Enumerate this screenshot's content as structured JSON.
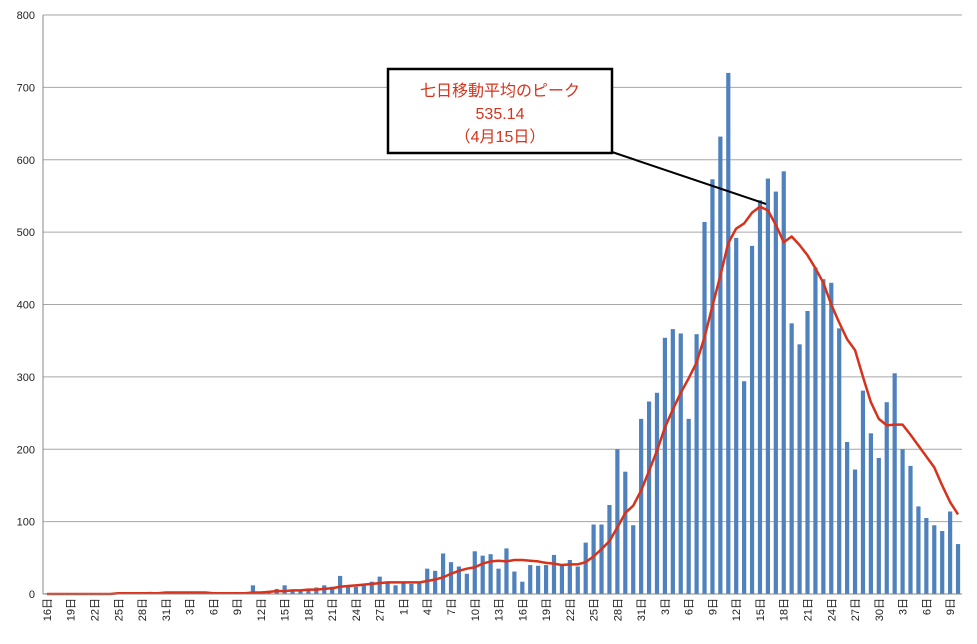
{
  "chart_data": {
    "type": "bar",
    "categories": [
      "16日",
      null,
      null,
      "19日",
      null,
      null,
      "22日",
      null,
      null,
      "25日",
      null,
      null,
      "28日",
      null,
      null,
      "31日",
      null,
      null,
      "3日",
      null,
      null,
      "6日",
      null,
      null,
      "9日",
      null,
      null,
      "12日",
      null,
      null,
      "15日",
      null,
      null,
      "18日",
      null,
      null,
      "21日",
      null,
      null,
      "24日",
      null,
      null,
      "27日",
      null,
      null,
      "1日",
      null,
      null,
      "4日",
      null,
      null,
      "7日",
      null,
      null,
      "10日",
      null,
      null,
      "13日",
      null,
      null,
      "16日",
      null,
      null,
      "19日",
      null,
      null,
      "22日",
      null,
      null,
      "25日",
      null,
      null,
      "28日",
      null,
      null,
      "31日",
      null,
      null,
      "3日",
      null,
      null,
      "6日",
      null,
      null,
      "9日",
      null,
      null,
      "12日",
      null,
      null,
      "15日",
      null,
      null,
      "18日",
      null,
      null,
      "21日",
      null,
      null,
      "24日",
      null,
      null,
      "27日",
      null,
      null,
      "30日",
      null,
      null,
      "3日",
      null,
      null,
      "6日",
      null,
      null,
      "9日",
      null
    ],
    "series": [
      {
        "type": "bar",
        "color": "#4f81bd",
        "values": [
          1,
          0,
          0,
          0,
          0,
          0,
          0,
          0,
          1,
          1,
          1,
          0,
          2,
          3,
          1,
          3,
          2,
          0,
          0,
          2,
          0,
          2,
          0,
          0,
          0,
          1,
          12,
          2,
          4,
          7,
          12,
          5,
          6,
          6,
          9,
          12,
          10,
          25,
          11,
          10,
          13,
          17,
          24,
          15,
          12,
          16,
          14,
          17,
          35,
          32,
          56,
          44,
          38,
          28,
          59,
          53,
          55,
          35,
          63,
          31,
          17,
          40,
          39,
          40,
          54,
          40,
          47,
          38,
          71,
          96,
          96,
          123,
          200,
          169,
          95,
          242,
          266,
          278,
          354,
          366,
          360,
          242,
          359,
          514,
          573,
          632,
          720,
          492,
          294,
          481,
          544,
          574,
          556,
          584,
          374,
          345,
          391,
          451,
          435,
          430,
          367,
          210,
          172,
          281,
          222,
          188,
          265,
          305,
          200,
          177,
          121,
          105,
          95,
          87,
          114,
          69
        ]
      },
      {
        "type": "line",
        "color": "#d7321c",
        "values": [
          0,
          0,
          0,
          0,
          0,
          0,
          0,
          0,
          0,
          1,
          1,
          1,
          1,
          1,
          1,
          2,
          2,
          2,
          2,
          2,
          2,
          1,
          1,
          1,
          1,
          1,
          2,
          2,
          3,
          4,
          4,
          5,
          5,
          6,
          6,
          7,
          8,
          10,
          11,
          12,
          13,
          14,
          15,
          16,
          16,
          16,
          16,
          16,
          18,
          20,
          23,
          28,
          32,
          35,
          37,
          42,
          45,
          46,
          45,
          47,
          47,
          46,
          45,
          43,
          42,
          40,
          41,
          41,
          44,
          52,
          62,
          73,
          92,
          112,
          122,
          143,
          170,
          198,
          230,
          255,
          278,
          298,
          320,
          355,
          398,
          440,
          485,
          505,
          512,
          527,
          535.14,
          530,
          510,
          486,
          494,
          482,
          468,
          450,
          430,
          400,
          375,
          352,
          337,
          300,
          265,
          242,
          233,
          234,
          234,
          220,
          205,
          190,
          175,
          150,
          127,
          110
        ]
      }
    ],
    "annotation": {
      "lines": [
        "七日移動平均のピーク",
        "（4月15日）"
      ]
    },
    "ylim": [
      0,
      800
    ],
    "yticks": [
      0,
      100,
      200,
      300,
      400,
      500,
      600,
      700,
      800
    ],
    "grid": true
  }
}
